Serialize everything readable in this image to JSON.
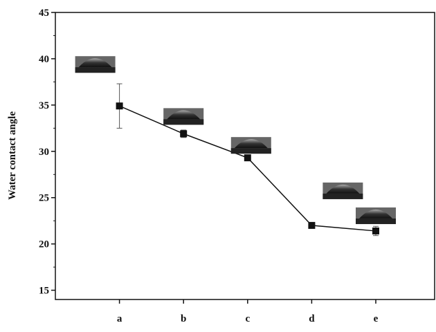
{
  "chart_data": {
    "type": "line",
    "y_label": "Water contact angle",
    "categories": [
      "a",
      "b",
      "c",
      "d",
      "e"
    ],
    "series": [
      {
        "color": "#111111",
        "values": [
          34.9,
          31.9,
          29.3,
          22.0,
          21.4
        ],
        "errors": [
          2.4,
          0.4,
          0.2,
          0.1,
          0.5
        ]
      }
    ],
    "ylim": [
      14,
      45
    ],
    "yticks": [
      15,
      20,
      25,
      30,
      35,
      40,
      45
    ]
  }
}
